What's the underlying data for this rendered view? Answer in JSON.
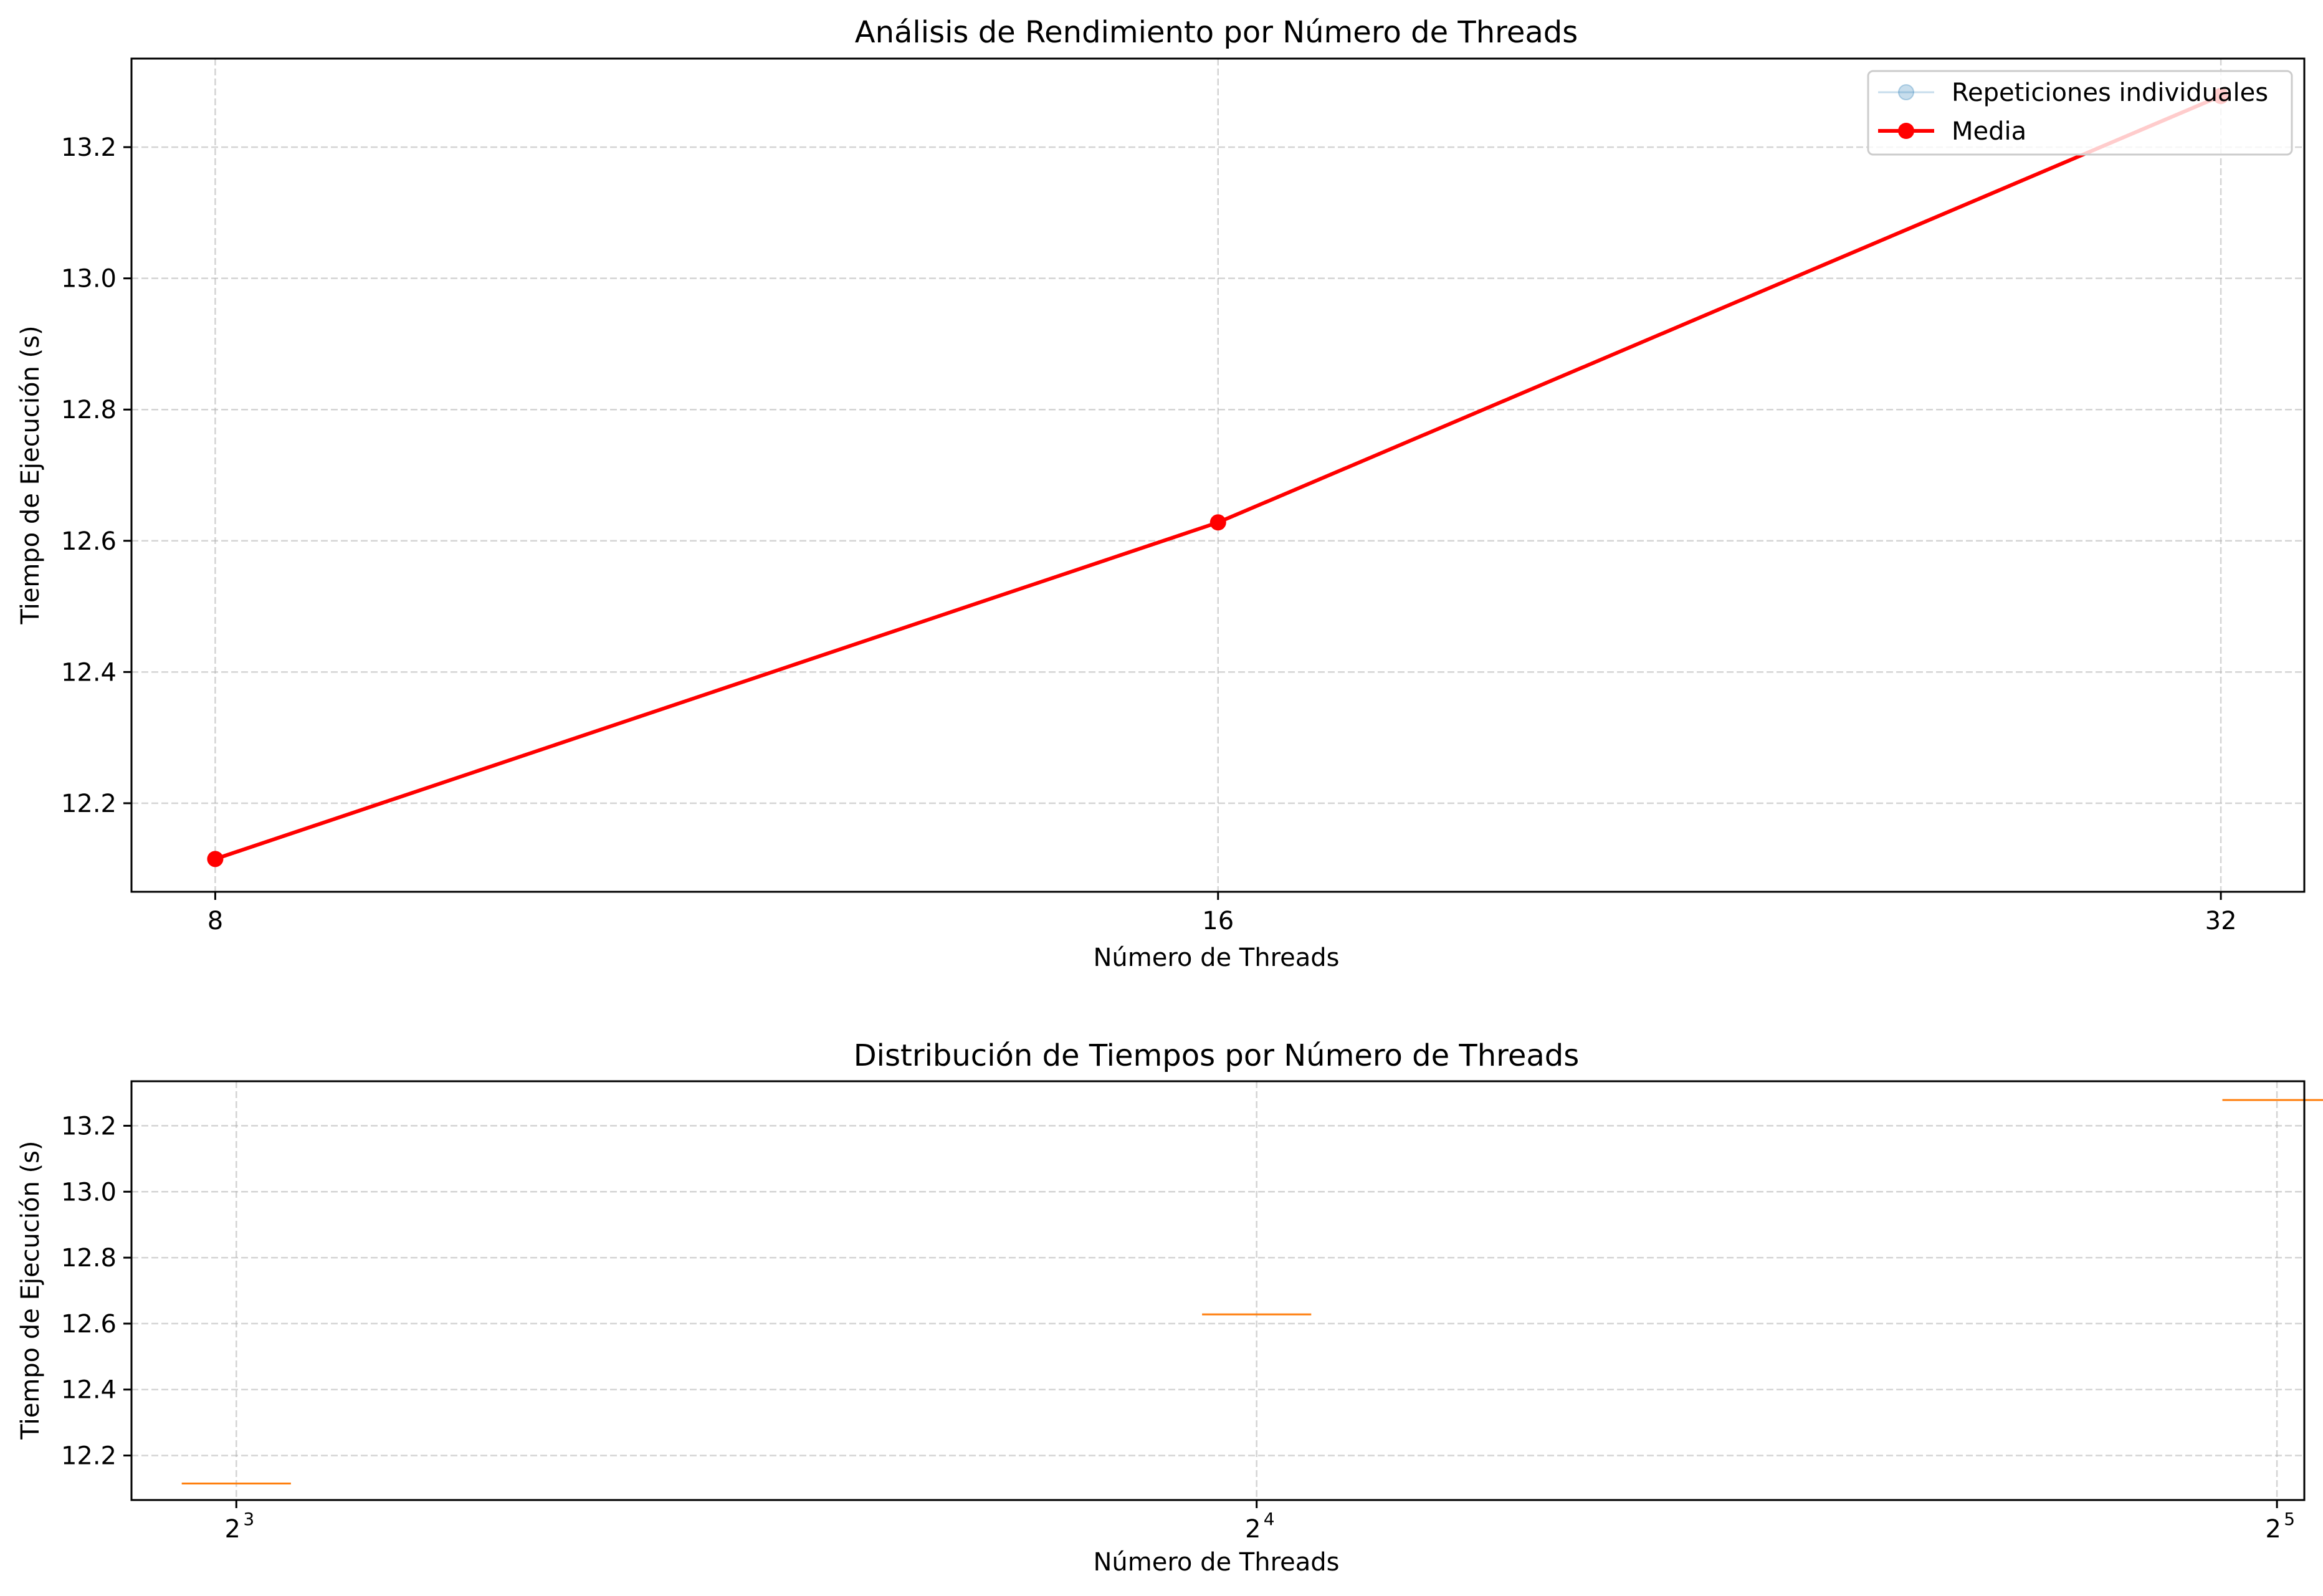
{
  "chart_data": [
    {
      "type": "line",
      "title": "Análisis de Rendimiento por Número de Threads",
      "xlabel": "Número de Threads",
      "ylabel": "Tiempo de Ejecución (s)",
      "x": [
        8,
        16,
        32
      ],
      "x_tick_labels": [
        "8",
        "16",
        "32"
      ],
      "x_scale": "log2",
      "xlim": [
        7.55,
        33.9
      ],
      "ylim": [
        12.065,
        13.335
      ],
      "y_ticks": [
        12.2,
        12.4,
        12.6,
        12.8,
        13.0,
        13.2
      ],
      "y_tick_labels": [
        "12.2",
        "12.4",
        "12.6",
        "12.8",
        "13.0",
        "13.2"
      ],
      "grid": true,
      "legend_position": "top-right",
      "series": [
        {
          "name": "Repeticiones individuales",
          "values": [
            12.115,
            12.628,
            13.278
          ],
          "color": "#1f77b4",
          "alpha": 0.25
        },
        {
          "name": "Media",
          "values": [
            12.115,
            12.628,
            13.278
          ],
          "color": "#ff0000"
        }
      ]
    },
    {
      "type": "box",
      "title": "Distribución de Tiempos por Número de Threads",
      "xlabel": "Número de Threads",
      "ylabel": "Tiempo de Ejecución (s)",
      "x": [
        8,
        16,
        32
      ],
      "x_tick_labels": [
        {
          "base": "2",
          "exp": "3"
        },
        {
          "base": "2",
          "exp": "4"
        },
        {
          "base": "2",
          "exp": "5"
        }
      ],
      "x_scale": "log2",
      "xlim": [
        7.45,
        32.6
      ],
      "ylim": [
        12.065,
        13.335
      ],
      "y_ticks": [
        12.2,
        12.4,
        12.6,
        12.8,
        13.0,
        13.2
      ],
      "y_tick_labels": [
        "12.2",
        "12.4",
        "12.6",
        "12.8",
        "13.0",
        "13.2"
      ],
      "grid": true,
      "medians": [
        12.115,
        12.628,
        13.278
      ],
      "median_color": "#ff7f0e"
    }
  ]
}
